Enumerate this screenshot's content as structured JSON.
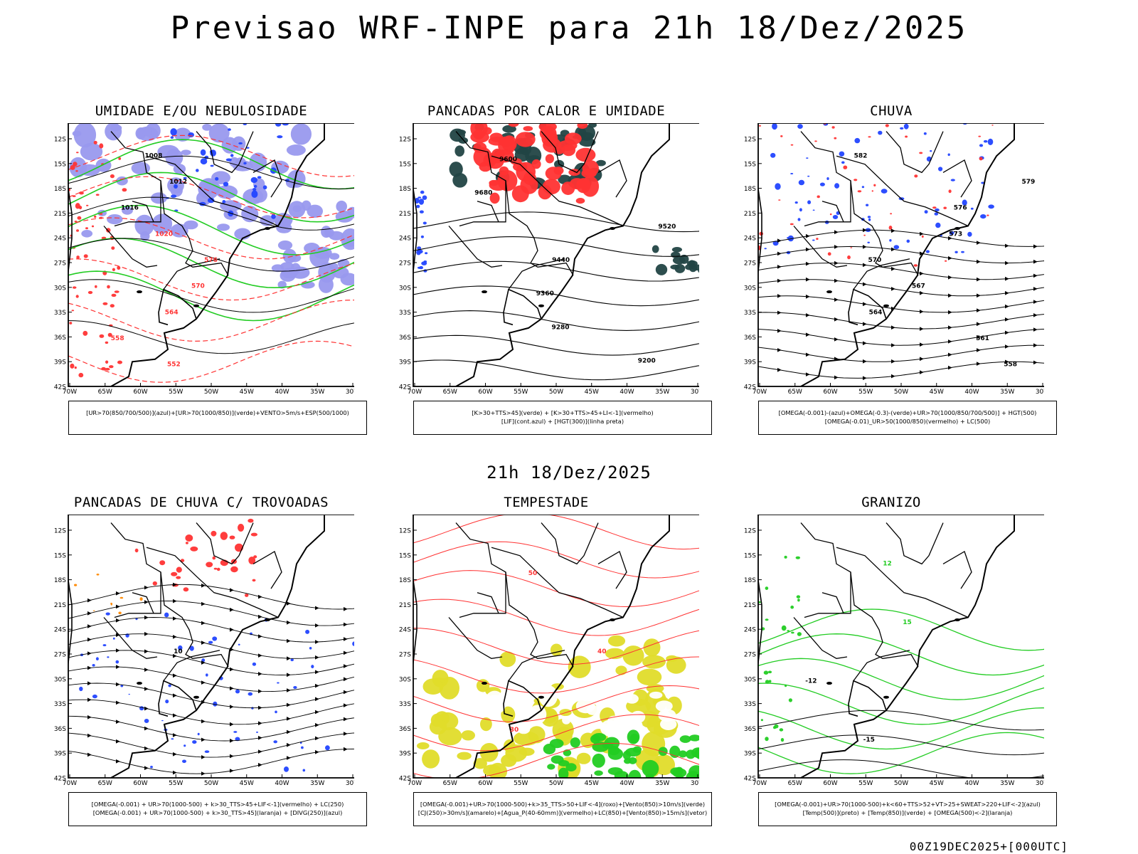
{
  "header": {
    "main_title": "Previsao WRF-INPE  para 21h 18/Dez/2025",
    "mid_title": "21h 18/Dez/2025",
    "footer_stamp": "00Z19DEC2025+[000UTC]"
  },
  "axes": {
    "lat_labels": [
      "12S",
      "15S",
      "18S",
      "21S",
      "24S",
      "27S",
      "30S",
      "33S",
      "36S",
      "39S",
      "42S"
    ],
    "lon_labels": [
      "70W",
      "65W",
      "60W",
      "55W",
      "50W",
      "45W",
      "40W",
      "35W",
      "30W"
    ]
  },
  "colors": {
    "blue": "#2244ff",
    "green": "#22cc22",
    "red": "#ff3333",
    "lavender": "#9999ee",
    "dark_teal": "#224444",
    "yellow": "#e0dc2a",
    "orange": "#ff8800"
  },
  "panels": [
    {
      "title": "UMIDADE E/OU NEBULOSIDADE",
      "legend": [
        "[UR>70(850/700/500)](azul)+[UR>70(1000/850)](verde)+VENTO>5m/s+ESP(500/1000)"
      ],
      "contour_labels": [
        "1008",
        "1012",
        "1016",
        "1020",
        "576",
        "570",
        "564",
        "558",
        "552"
      ]
    },
    {
      "title": "PANCADAS POR CALOR E UMIDADE",
      "legend": [
        "[K>30+TTS>45](verde) + [K>30+TTS>45+LI<-1](vermelho)",
        "[LIF](cont.azul) + [HGT(300)](linha preta)"
      ],
      "contour_labels": [
        "9600",
        "9680",
        "9520",
        "9440",
        "9360",
        "9280",
        "9200"
      ]
    },
    {
      "title": "CHUVA",
      "legend": [
        "[OMEGA(-0.001)-(azul)+OMEGA(-0.3)-(verde)+UR>70(1000/850/700/500)] + HGT(500)",
        "[OMEGA(-0.01)_UR>50(1000/850)(vermelho) + LC(500)"
      ],
      "contour_labels": [
        "582",
        "579",
        "576",
        "573",
        "570",
        "567",
        "564",
        "561",
        "558"
      ]
    },
    {
      "title": "PANCADAS DE CHUVA C/ TROVOADAS",
      "legend": [
        "[OMEGA(-0.001) + UR>70(1000-500) + k>30_TTS>45+LIF<-1](vermelho) + LC(250)",
        "[OMEGA(-0.001) + UR>70(1000-500) + k>30_TTS>45](laranja) + [DIVG(250)](azul)"
      ],
      "contour_labels": [
        "10"
      ]
    },
    {
      "title": "TEMPESTADE",
      "legend": [
        "[OMEGA(-0.001)+UR>70(1000-500)+k>35_TTS>50+LIF<-4](roxo)+[Vento(850)>10m/s](verde)",
        "[CJ(250)>30m/s](amarelo)+[Agua_P(40-60mm)](vermelho)+LC(850)+[Vento(850)>15m/s](vetor)"
      ],
      "contour_labels": [
        "50",
        "40",
        "30"
      ]
    },
    {
      "title": "GRANIZO",
      "legend": [
        "[OMEGA(-0.001)+UR>70(1000-500)+k<60+TTS>52+VT>25+SWEAT>220+LIF<-2](azul)",
        "[Temp(500)](preto) + [Temp(850)](verde) + [OMEGA(500)<-2](laranja)"
      ],
      "contour_labels": [
        "12",
        "15",
        "-12",
        "-15"
      ]
    }
  ]
}
